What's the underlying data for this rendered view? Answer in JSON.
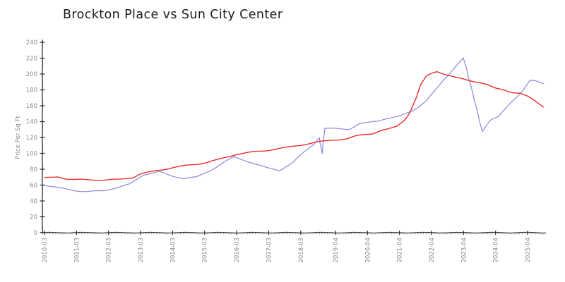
{
  "page": {
    "background": "#ffffff"
  },
  "chart_data": {
    "type": "line",
    "title": "Brockton Place vs Sun City Center",
    "xlabel": "",
    "ylabel": "Price Per Sq Ft",
    "ylim": [
      0,
      240
    ],
    "ytick_step": 20,
    "yticks": [
      0,
      20,
      40,
      60,
      80,
      100,
      120,
      140,
      160,
      180,
      200,
      220,
      240
    ],
    "xticks": [
      "2010-03",
      "2011-03",
      "2012-03",
      "2013-03",
      "2014-03",
      "2015-03",
      "2016-03",
      "2017-03",
      "2018-03",
      "2019-04",
      "2020-04",
      "2021-04",
      "2022-04",
      "2023-04",
      "2024-04",
      "2025-04"
    ],
    "x_minor_tick_unit": "month",
    "grid": false,
    "legend": "none",
    "style": "hand-drawn-xkcd",
    "colors": {
      "axis": "#2b2b2b",
      "tick_labels": "#8b8b8b",
      "minor_ticks": "#777777"
    },
    "series": [
      {
        "name": "Brockton Place",
        "color": "#ea2c2c",
        "points": [
          [
            "2010-03",
            69
          ],
          [
            "2010-06",
            69.5
          ],
          [
            "2010-08",
            70.5
          ],
          [
            "2010-11",
            68
          ],
          [
            "2011-02",
            67
          ],
          [
            "2011-08",
            66.5
          ],
          [
            "2012-02",
            66.5
          ],
          [
            "2012-07",
            67
          ],
          [
            "2012-12",
            69.5
          ],
          [
            "2013-03",
            74
          ],
          [
            "2013-09",
            78
          ],
          [
            "2014-03",
            82
          ],
          [
            "2014-09",
            85
          ],
          [
            "2015-03",
            88
          ],
          [
            "2015-09",
            93
          ],
          [
            "2016-03",
            99
          ],
          [
            "2016-09",
            101.5
          ],
          [
            "2017-03",
            104
          ],
          [
            "2017-09",
            107
          ],
          [
            "2018-03",
            110.5
          ],
          [
            "2018-09",
            114
          ],
          [
            "2019-03",
            117
          ],
          [
            "2019-08",
            118
          ],
          [
            "2019-12",
            122
          ],
          [
            "2020-03",
            124
          ],
          [
            "2020-06",
            125
          ],
          [
            "2020-09",
            128.5
          ],
          [
            "2020-12",
            130.5
          ],
          [
            "2021-03",
            134
          ],
          [
            "2021-06",
            143
          ],
          [
            "2021-08",
            152
          ],
          [
            "2021-10",
            168
          ],
          [
            "2021-12",
            186
          ],
          [
            "2022-02",
            197
          ],
          [
            "2022-04",
            201
          ],
          [
            "2022-06",
            203.5
          ],
          [
            "2022-08",
            201
          ],
          [
            "2022-10",
            198.5
          ],
          [
            "2023-01",
            195.5
          ],
          [
            "2023-04",
            193.5
          ],
          [
            "2023-07",
            191.5
          ],
          [
            "2023-10",
            189.5
          ],
          [
            "2024-01",
            186
          ],
          [
            "2024-04",
            182
          ],
          [
            "2024-07",
            180.5
          ],
          [
            "2024-10",
            177
          ],
          [
            "2025-01",
            175.5
          ],
          [
            "2025-04",
            171.5
          ],
          [
            "2025-07",
            166
          ],
          [
            "2025-10",
            159
          ]
        ]
      },
      {
        "name": "Sun City Center",
        "color": "#8c8cdf",
        "points": [
          [
            "2010-03",
            60
          ],
          [
            "2010-09",
            56
          ],
          [
            "2011-03",
            53
          ],
          [
            "2011-07",
            51.5
          ],
          [
            "2012-01",
            53
          ],
          [
            "2012-07",
            57.5
          ],
          [
            "2012-11",
            61
          ],
          [
            "2013-04",
            73
          ],
          [
            "2013-10",
            77
          ],
          [
            "2014-02",
            72
          ],
          [
            "2014-07",
            68.5
          ],
          [
            "2014-12",
            70
          ],
          [
            "2015-06",
            80
          ],
          [
            "2015-12",
            92
          ],
          [
            "2016-02",
            95.5
          ],
          [
            "2016-08",
            89
          ],
          [
            "2017-02",
            82
          ],
          [
            "2017-07",
            78.5
          ],
          [
            "2017-12",
            88
          ],
          [
            "2018-04",
            101
          ],
          [
            "2018-08",
            112
          ],
          [
            "2018-10",
            120
          ],
          [
            "2018-11",
            100
          ],
          [
            "2018-12",
            131.5
          ],
          [
            "2019-09",
            130.5
          ],
          [
            "2020-01",
            137
          ],
          [
            "2020-05",
            139
          ],
          [
            "2020-08",
            141
          ],
          [
            "2020-11",
            144
          ],
          [
            "2021-04",
            146.5
          ],
          [
            "2021-09",
            154
          ],
          [
            "2022-02",
            166
          ],
          [
            "2022-08",
            190
          ],
          [
            "2023-01",
            210
          ],
          [
            "2023-04",
            220
          ],
          [
            "2023-08",
            168
          ],
          [
            "2023-11",
            128
          ],
          [
            "2024-02",
            142
          ],
          [
            "2024-05",
            146
          ],
          [
            "2024-09",
            161
          ],
          [
            "2025-01",
            175
          ],
          [
            "2025-05",
            192
          ],
          [
            "2025-07",
            191
          ],
          [
            "2025-10",
            187.5
          ]
        ]
      }
    ]
  }
}
